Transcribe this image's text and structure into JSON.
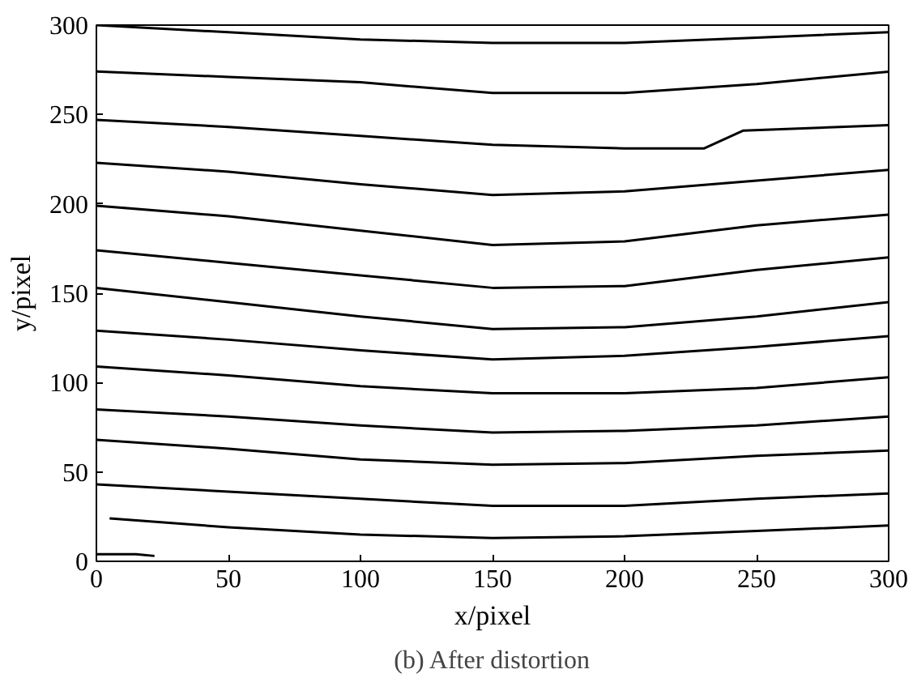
{
  "chart_data": {
    "type": "line",
    "title": "(b) After distortion",
    "xlabel": "x/pixel",
    "ylabel": "y/pixel",
    "x": [
      0,
      50,
      100,
      150,
      200,
      250,
      300
    ],
    "xlim": [
      0,
      300
    ],
    "ylim": [
      0,
      300
    ],
    "xticks": [
      0,
      50,
      100,
      150,
      200,
      250,
      300
    ],
    "yticks": [
      0,
      50,
      100,
      150,
      200,
      250,
      300
    ],
    "grid": false,
    "marker": "none",
    "line_style": "solid",
    "series": [
      {
        "color": "#000000",
        "values": [
          300,
          296,
          292,
          290,
          290,
          293,
          296
        ]
      },
      {
        "color": "#000000",
        "values": [
          274,
          271,
          268,
          262,
          262,
          267,
          274
        ]
      },
      {
        "color": "#000000",
        "x": [
          0,
          50,
          100,
          150,
          200,
          230,
          245,
          300
        ],
        "values": [
          247,
          243,
          238,
          233,
          231,
          231,
          241,
          244
        ]
      },
      {
        "color": "#000000",
        "values": [
          223,
          218,
          211,
          205,
          207,
          213,
          219
        ]
      },
      {
        "color": "#000000",
        "values": [
          199,
          193,
          185,
          177,
          179,
          188,
          194
        ]
      },
      {
        "color": "#000000",
        "values": [
          174,
          167,
          160,
          153,
          154,
          163,
          170
        ]
      },
      {
        "color": "#000000",
        "values": [
          153,
          145,
          137,
          130,
          131,
          137,
          145
        ]
      },
      {
        "color": "#000000",
        "values": [
          129,
          124,
          118,
          113,
          115,
          120,
          126
        ]
      },
      {
        "color": "#000000",
        "values": [
          109,
          104,
          98,
          94,
          94,
          97,
          103
        ]
      },
      {
        "color": "#000000",
        "values": [
          85,
          81,
          76,
          72,
          73,
          76,
          81
        ]
      },
      {
        "color": "#000000",
        "values": [
          68,
          63,
          57,
          54,
          55,
          59,
          62
        ]
      },
      {
        "color": "#000000",
        "values": [
          43,
          39,
          35,
          31,
          31,
          35,
          38
        ]
      },
      {
        "color": "#000000",
        "x": [
          5,
          50,
          100,
          150,
          200,
          250,
          300
        ],
        "values": [
          24,
          19,
          15,
          13,
          14,
          17,
          20
        ]
      },
      {
        "color": "#000000",
        "x": [
          0,
          15,
          22
        ],
        "values": [
          4,
          4,
          3
        ]
      }
    ]
  }
}
